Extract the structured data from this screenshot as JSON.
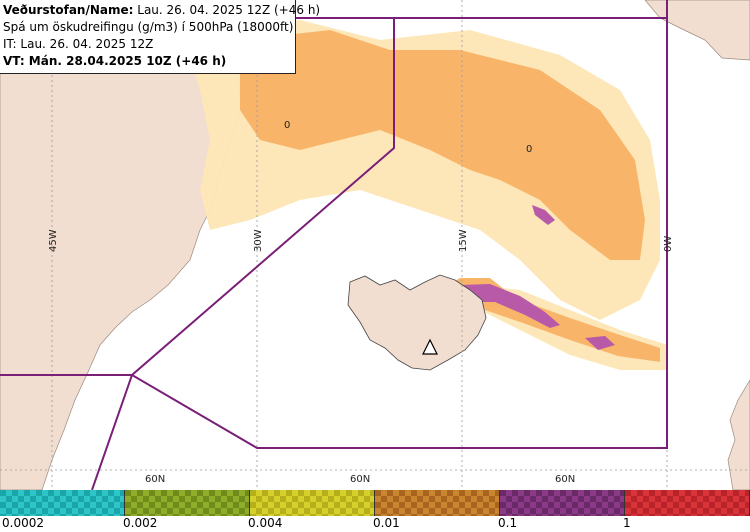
{
  "info": {
    "line1_label": "Veðurstofan/Name:",
    "line1_value": "Lau. 26. 04. 2025 12Z (+46 h)",
    "line2": "Spá um öskudreifingu (g/m3) í 500hPa (18000ft)",
    "line3": "IT: Lau. 26. 04. 2025 12Z",
    "line4": "VT: Mán. 28.04.2025 10Z (+46 h)"
  },
  "map": {
    "longitude_labels": [
      "45W",
      "30W",
      "15W",
      "0W"
    ],
    "latitude_labels": [
      "60N",
      "60N",
      "60N"
    ],
    "contour_labels": [
      "0",
      "0"
    ],
    "colors": {
      "land": "#f2ddd1",
      "ash_light": "#fdd9a0",
      "ash_orange": "#f8b56a",
      "ash_purple": "#b85aa8",
      "boundary": "#7a1f78",
      "grid": "#9a9a9a"
    }
  },
  "legend": {
    "segments": [
      {
        "color": "#2ec5c8",
        "dark": "#1aa5a8"
      },
      {
        "color": "#8fac2a",
        "dark": "#6f8c1a"
      },
      {
        "color": "#d6cf2c",
        "dark": "#b6af1c"
      },
      {
        "color": "#c9852f",
        "dark": "#a9651f"
      },
      {
        "color": "#8a3a87",
        "dark": "#6a2a67"
      },
      {
        "color": "#d8343a",
        "dark": "#b8242a"
      }
    ],
    "tick_labels": [
      "0.0002",
      "0.002",
      "0.004",
      "0.01",
      "0.1",
      "1"
    ]
  }
}
